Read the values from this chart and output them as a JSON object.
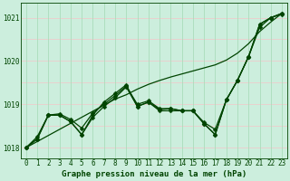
{
  "xlabel": "Graphe pression niveau de la mer (hPa)",
  "bg_color": "#cceedd",
  "grid_color_h": "#eecccc",
  "grid_color_v": "#aaddbb",
  "line_color": "#004400",
  "x_values": [
    0,
    1,
    2,
    3,
    4,
    5,
    6,
    7,
    8,
    9,
    10,
    11,
    12,
    13,
    14,
    15,
    16,
    17,
    18,
    19,
    20,
    21,
    22,
    23
  ],
  "series_main": [
    1018.0,
    1018.2,
    1018.75,
    1018.75,
    1018.6,
    1018.3,
    1018.7,
    1018.95,
    1019.15,
    1019.4,
    1018.95,
    1019.05,
    1018.85,
    1018.85,
    1018.85,
    1018.85,
    1018.55,
    1018.3,
    1019.1,
    1019.55,
    1020.1,
    1020.85,
    1021.0,
    1021.1
  ],
  "series2": [
    1018.0,
    1018.2,
    1018.75,
    1018.75,
    1018.6,
    1018.3,
    1018.75,
    1019.05,
    1019.25,
    1019.45,
    1018.95,
    1019.05,
    1018.88,
    1018.9,
    1018.85,
    1018.85,
    1018.55,
    1018.3,
    1019.1,
    1019.55,
    1020.1,
    1020.85,
    1021.0,
    1021.1
  ],
  "series3": [
    1018.0,
    1018.25,
    1018.75,
    1018.78,
    1018.65,
    1018.45,
    1018.8,
    1019.0,
    1019.2,
    1019.42,
    1019.0,
    1019.08,
    1018.9,
    1018.9,
    1018.85,
    1018.85,
    1018.58,
    1018.42,
    1019.1,
    1019.55,
    1020.1,
    1020.78,
    1021.0,
    1021.08
  ],
  "series_trend": [
    1018.0,
    1018.14,
    1018.28,
    1018.42,
    1018.56,
    1018.7,
    1018.84,
    1018.98,
    1019.12,
    1019.22,
    1019.35,
    1019.46,
    1019.55,
    1019.63,
    1019.7,
    1019.77,
    1019.84,
    1019.91,
    1020.02,
    1020.18,
    1020.4,
    1020.68,
    1020.9,
    1021.1
  ],
  "ylim_min": 1017.75,
  "ylim_max": 1021.35,
  "yticks": [
    1018,
    1019,
    1020,
    1021
  ],
  "marker_size": 2.5,
  "line_width": 0.9,
  "xlabel_fontsize": 6.5,
  "tick_fontsize": 5.5
}
